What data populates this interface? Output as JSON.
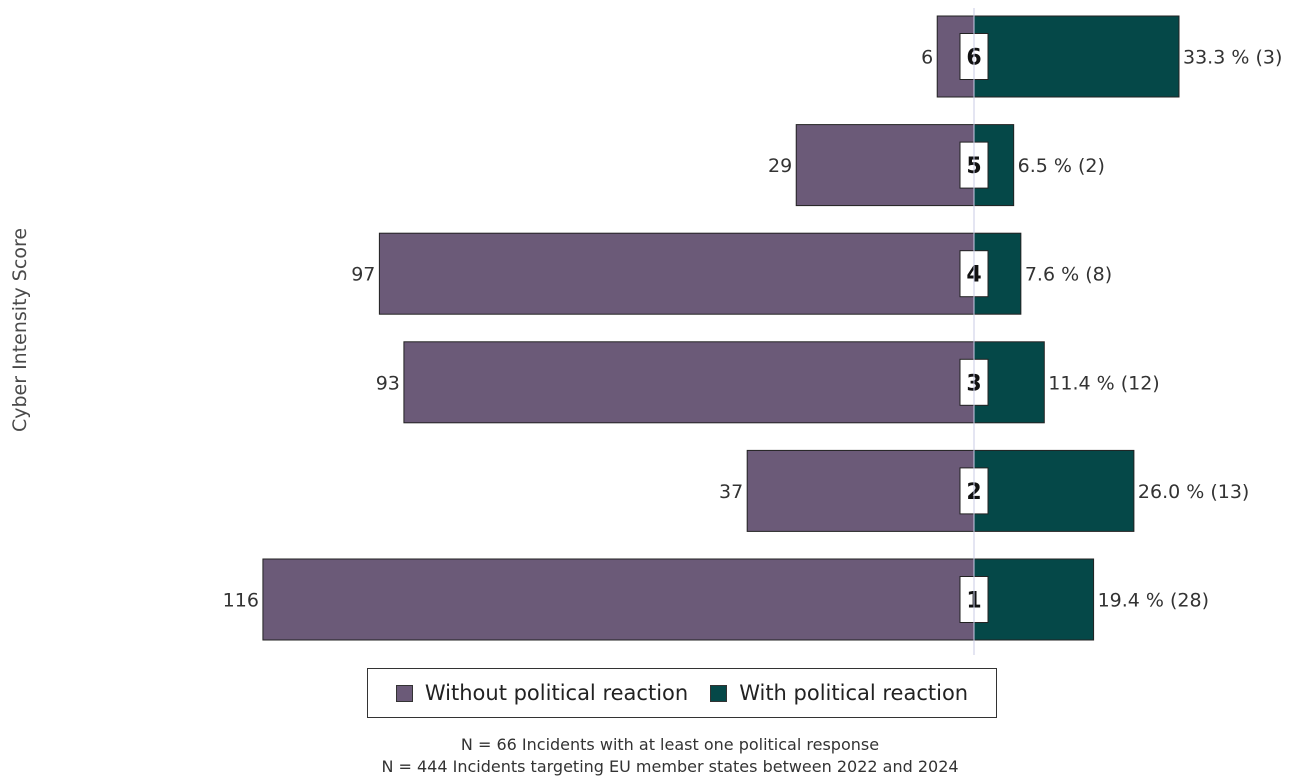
{
  "chart_data": {
    "type": "bar",
    "orientation": "horizontal-diverging",
    "ylabel": "Cyber Intensity Score",
    "categories": [
      "6",
      "5",
      "4",
      "3",
      "2",
      "1"
    ],
    "series": [
      {
        "name": "Without political reaction",
        "color": "#6b5a78",
        "values": [
          6,
          29,
          97,
          93,
          37,
          116
        ],
        "labels": [
          "6",
          "29",
          "97",
          "93",
          "37",
          "116"
        ]
      },
      {
        "name": "With political reaction",
        "color": "#054848",
        "values": [
          3,
          2,
          8,
          12,
          13,
          28
        ],
        "labels": [
          "33.3 % (3)",
          "6.5 % (2)",
          "7.6 % (8)",
          "11.4 % (12)",
          "26.0 % (13)",
          "19.4 % (28)"
        ]
      }
    ],
    "legend_position": "bottom",
    "grid": false
  },
  "footnotes": [
    "N = 66 Incidents with at least one political response",
    "N = 444 Incidents targeting EU member states between 2022 and 2024"
  ]
}
